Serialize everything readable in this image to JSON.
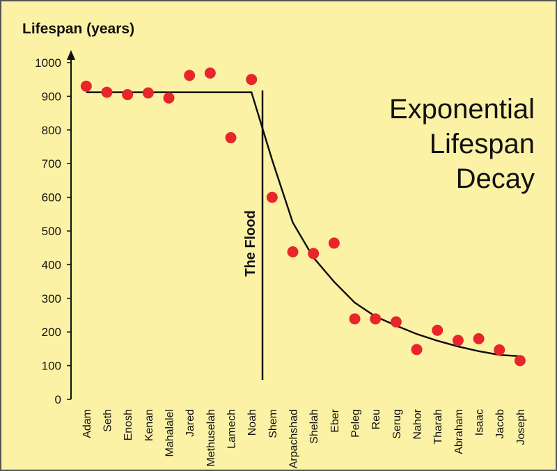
{
  "chart_data": {
    "type": "scatter",
    "title": [
      "Exponential",
      "Lifespan",
      "Decay"
    ],
    "y_label": "Lifespan (years)",
    "annotation": "The Flood",
    "categories": [
      "Adam",
      "Seth",
      "Enosh",
      "Kenan",
      "Mahalalel",
      "Jared",
      "Methuselah",
      "Lamech",
      "Noah",
      "Shem",
      "Arpachshad",
      "Shelah",
      "Eber",
      "Peleg",
      "Reu",
      "Serug",
      "Nahor",
      "Tharah",
      "Abraham",
      "Isaac",
      "Jacob",
      "Joseph"
    ],
    "series": [
      {
        "name": "Lifespan",
        "color": "#e8262a",
        "values": [
          930,
          912,
          905,
          910,
          895,
          962,
          969,
          777,
          950,
          600,
          438,
          433,
          464,
          239,
          239,
          230,
          148,
          205,
          175,
          180,
          147,
          115
        ]
      },
      {
        "name": "Trend",
        "color": "#111111",
        "values": [
          912,
          912,
          912,
          912,
          912,
          912,
          912,
          912,
          912,
          711,
          525,
          421,
          349,
          287,
          246,
          219,
          194,
          174,
          157,
          143,
          132,
          128
        ]
      }
    ],
    "ylim": [
      0,
      1000
    ],
    "yticks": [
      0,
      100,
      200,
      300,
      400,
      500,
      600,
      700,
      800,
      900,
      1000
    ]
  }
}
